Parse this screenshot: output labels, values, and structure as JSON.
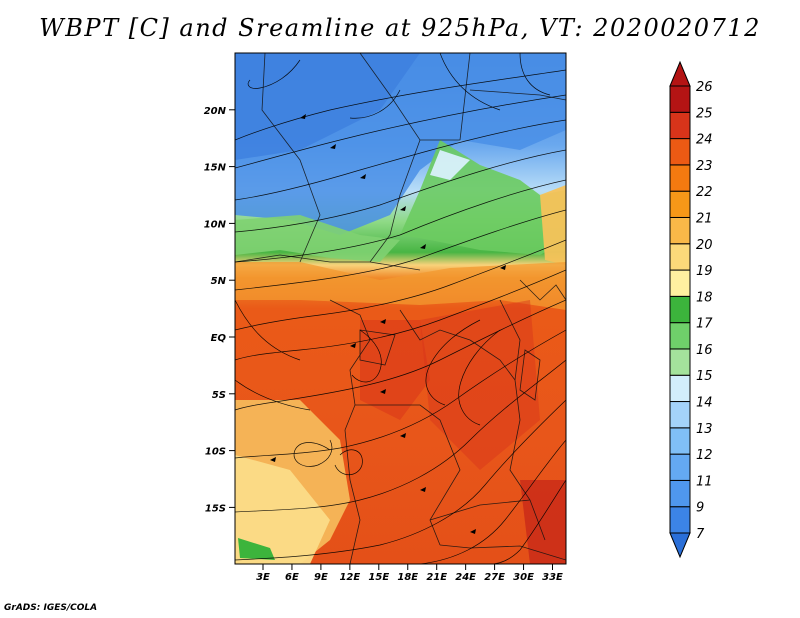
{
  "title": "WBPT [C] and Sreamline at 925hPa, VT: 2020020712",
  "footer": "GrADS: IGES/COLA",
  "map": {
    "lat_labels": [
      {
        "value": 20,
        "label": "20N"
      },
      {
        "value": 15,
        "label": "15N"
      },
      {
        "value": 10,
        "label": "10N"
      },
      {
        "value": 5,
        "label": "5N"
      },
      {
        "value": 0,
        "label": "EQ"
      },
      {
        "value": -5,
        "label": "5S"
      },
      {
        "value": -10,
        "label": "10S"
      },
      {
        "value": -15,
        "label": "15S"
      }
    ],
    "lon_labels": [
      {
        "value": 3,
        "label": "3E"
      },
      {
        "value": 6,
        "label": "6E"
      },
      {
        "value": 9,
        "label": "9E"
      },
      {
        "value": 12,
        "label": "12E"
      },
      {
        "value": 15,
        "label": "15E"
      },
      {
        "value": 18,
        "label": "18E"
      },
      {
        "value": 21,
        "label": "21E"
      },
      {
        "value": 24,
        "label": "24E"
      },
      {
        "value": 27,
        "label": "27E"
      },
      {
        "value": 30,
        "label": "30E"
      },
      {
        "value": 33,
        "label": "33E"
      }
    ]
  },
  "colorbar": {
    "levels": [
      "7",
      "9",
      "11",
      "12",
      "13",
      "14",
      "15",
      "16",
      "17",
      "18",
      "19",
      "20",
      "21",
      "22",
      "23",
      "24",
      "25",
      "26"
    ],
    "colors": [
      "#2a6fd8",
      "#3c84e6",
      "#4f97ee",
      "#64a9f3",
      "#80bff7",
      "#a4d3fa",
      "#d2eefc",
      "#a4e39c",
      "#6fd06a",
      "#3cb43c",
      "#fff0a0",
      "#fcd97a",
      "#f9b848",
      "#f69818",
      "#f47a10",
      "#ec5a14",
      "#d8341a",
      "#b41414"
    ]
  }
}
